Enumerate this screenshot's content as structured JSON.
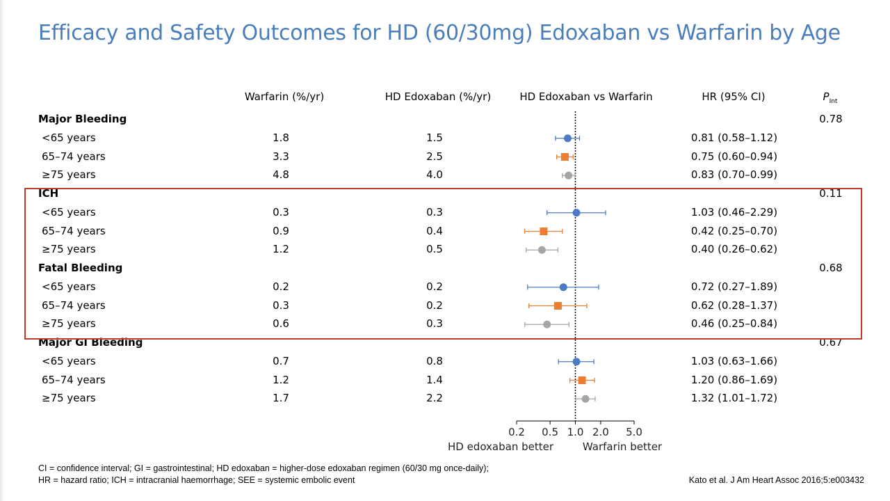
{
  "slide": {
    "title": "Efficacy and Safety Outcomes for HD (60/30mg) Edoxaban vs Warfarin by Age",
    "footnote_line1": "CI = confidence interval; GI = gastrointestinal; HD edoxaban = higher-dose edoxaban regimen (60/30 mg once-daily);",
    "footnote_line2": "HR = hazard ratio; ICH = intracranial haemorrhage; SEE = systemic embolic event",
    "citation": "Kato et al. J Am Heart Assoc 2016;5:e003432"
  },
  "headers": {
    "warfarin": "Warfarin (%/yr)",
    "edoxaban": "HD Edoxaban  (%/yr)",
    "comparison": "HD Edoxaban  vs Warfarin",
    "hr": "HR (95% CI)",
    "pint_main": "P",
    "pint_sub": "Int"
  },
  "groups": [
    {
      "name": "Major Bleeding",
      "p_int": "0.78",
      "rows": [
        {
          "label": "<65 years",
          "warfarin": "1.8",
          "edoxaban": "1.5",
          "hr_text": "0.81 (0.58–1.12)",
          "hr": 0.81,
          "lo": 0.58,
          "hi": 1.12
        },
        {
          "label": "65–74 years",
          "warfarin": "3.3",
          "edoxaban": "2.5",
          "hr_text": "0.75 (0.60–0.94)",
          "hr": 0.75,
          "lo": 0.6,
          "hi": 0.94
        },
        {
          "label": "≥75 years",
          "warfarin": "4.8",
          "edoxaban": "4.0",
          "hr_text": "0.83 (0.70–0.99)",
          "hr": 0.83,
          "lo": 0.7,
          "hi": 0.99
        }
      ]
    },
    {
      "name": "ICH",
      "p_int": "0.11",
      "rows": [
        {
          "label": "<65 years",
          "warfarin": "0.3",
          "edoxaban": "0.3",
          "hr_text": "1.03 (0.46–2.29)",
          "hr": 1.03,
          "lo": 0.46,
          "hi": 2.29
        },
        {
          "label": "65–74 years",
          "warfarin": "0.9",
          "edoxaban": "0.4",
          "hr_text": "0.42 (0.25–0.70)",
          "hr": 0.42,
          "lo": 0.25,
          "hi": 0.7
        },
        {
          "label": "≥75 years",
          "warfarin": "1.2",
          "edoxaban": "0.5",
          "hr_text": "0.40 (0.26–0.62)",
          "hr": 0.4,
          "lo": 0.26,
          "hi": 0.62
        }
      ]
    },
    {
      "name": "Fatal Bleeding",
      "p_int": "0.68",
      "rows": [
        {
          "label": "<65 years",
          "warfarin": "0.2",
          "edoxaban": "0.2",
          "hr_text": "0.72 (0.27–1.89)",
          "hr": 0.72,
          "lo": 0.27,
          "hi": 1.89
        },
        {
          "label": "65–74 years",
          "warfarin": "0.3",
          "edoxaban": "0.2",
          "hr_text": "0.62 (0.28–1.37)",
          "hr": 0.62,
          "lo": 0.28,
          "hi": 1.37
        },
        {
          "label": "≥75 years",
          "warfarin": "0.6",
          "edoxaban": "0.3",
          "hr_text": "0.46 (0.25–0.84)",
          "hr": 0.46,
          "lo": 0.25,
          "hi": 0.84
        }
      ]
    },
    {
      "name": "Major GI Bleeding",
      "p_int": "0.67",
      "rows": [
        {
          "label": "<65 years",
          "warfarin": "0.7",
          "edoxaban": "0.8",
          "hr_text": "1.03 (0.63–1.66)",
          "hr": 1.03,
          "lo": 0.63,
          "hi": 1.66
        },
        {
          "label": "65–74 years",
          "warfarin": "1.2",
          "edoxaban": "1.4",
          "hr_text": "1.20 (0.86–1.69)",
          "hr": 1.2,
          "lo": 0.86,
          "hi": 1.69
        },
        {
          "label": "≥75 years",
          "warfarin": "1.7",
          "edoxaban": "2.2",
          "hr_text": "1.32 (1.01–1.72)",
          "hr": 1.32,
          "lo": 1.01,
          "hi": 1.72
        }
      ]
    }
  ],
  "chart_data": {
    "type": "forest",
    "x_scale": "log",
    "xlim": [
      0.2,
      5.0
    ],
    "x_ticks": [
      "0.2",
      "0.5",
      "1.0",
      "2.0",
      "5.0"
    ],
    "x_tick_values": [
      0.2,
      0.5,
      1.0,
      2.0,
      5.0
    ],
    "reference_line": 1.0,
    "left_note": "HD edoxaban better",
    "right_note": "Warfarin better",
    "age_styles": [
      {
        "shape": "circle",
        "color": "#4a7bc4"
      },
      {
        "shape": "square",
        "color": "#ed7d31"
      },
      {
        "shape": "circle",
        "color": "#a5a5a5"
      }
    ]
  }
}
